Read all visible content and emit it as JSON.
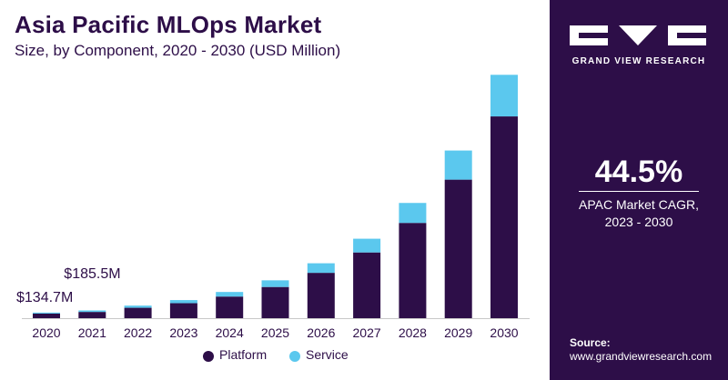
{
  "header": {
    "title": "Asia Pacific MLOps Market",
    "subtitle": "Size, by Component, 2020 - 2030 (USD Million)"
  },
  "sidebar": {
    "brand": "GRAND VIEW RESEARCH",
    "cagr_value": "44.5%",
    "cagr_label_line1": "APAC Market CAGR,",
    "cagr_label_line2": "2023 - 2030",
    "source_label": "Source:",
    "source_url": "www.grandviewresearch.com"
  },
  "colors": {
    "platform": "#2d0e48",
    "service": "#5bc8ee",
    "panel": "#2d0e48"
  },
  "chart_data": {
    "type": "bar",
    "stacked": true,
    "categories": [
      "2020",
      "2021",
      "2022",
      "2023",
      "2024",
      "2025",
      "2026",
      "2027",
      "2028",
      "2029",
      "2030"
    ],
    "series": [
      {
        "name": "Platform",
        "values": [
          110,
          150,
          250,
          360,
          520,
          750,
          1090,
          1580,
          2290,
          3330,
          4850
        ]
      },
      {
        "name": "Service",
        "values": [
          25,
          36,
          52,
          75,
          110,
          160,
          230,
          330,
          480,
          700,
          1000
        ]
      }
    ],
    "annotations": [
      {
        "label": "$134.7M",
        "category": "2020"
      },
      {
        "label": "$185.5M",
        "category": "2021"
      }
    ],
    "ylim": [
      0,
      5900
    ],
    "grid": false,
    "legend": "bottom"
  }
}
